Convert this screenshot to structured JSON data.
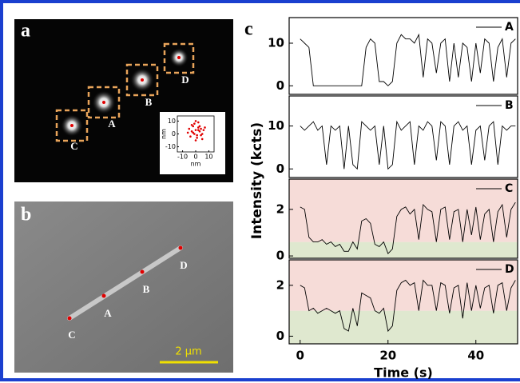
{
  "panel_a": {
    "label": "a",
    "spots": [
      "A",
      "B",
      "C",
      "D"
    ]
  },
  "panel_b": {
    "label": "b",
    "points": [
      "A",
      "B",
      "C",
      "D"
    ],
    "scale_bar": "2 μm"
  },
  "panel_c": {
    "label": "c",
    "ylabel": "Intensity (kcts)",
    "xlabel": "Time (s)"
  },
  "chart_data": [
    {
      "type": "line",
      "x": [
        0,
        1,
        2,
        3,
        4,
        5,
        6,
        7,
        8,
        9,
        10,
        11,
        12,
        13,
        14,
        15,
        16,
        17,
        18,
        19,
        20,
        21,
        22,
        23,
        24,
        25,
        26,
        27,
        28,
        29,
        30,
        31,
        32,
        33,
        34,
        35,
        36,
        37,
        38,
        39,
        40,
        41,
        42,
        43,
        44,
        45,
        46,
        47,
        48,
        49
      ],
      "series": [
        {
          "name": "A",
          "color": "#000000",
          "values": [
            11,
            10,
            9,
            0,
            0,
            0,
            0,
            0,
            0,
            0,
            0,
            0,
            0,
            0,
            0,
            9,
            11,
            10,
            1,
            1,
            0,
            1,
            10,
            12,
            11,
            11,
            10,
            12,
            2,
            11,
            10,
            3,
            10,
            11,
            1,
            10,
            2,
            10,
            9,
            1,
            10,
            3,
            11,
            10,
            1,
            9,
            11,
            2,
            10,
            11
          ]
        }
      ],
      "xlim": [
        -2.5,
        49.5
      ],
      "ylim": [
        -2,
        16
      ],
      "yticks": [
        0,
        10
      ]
    },
    {
      "type": "line",
      "x": [
        0,
        1,
        2,
        3,
        4,
        5,
        6,
        7,
        8,
        9,
        10,
        11,
        12,
        13,
        14,
        15,
        16,
        17,
        18,
        19,
        20,
        21,
        22,
        23,
        24,
        25,
        26,
        27,
        28,
        29,
        30,
        31,
        32,
        33,
        34,
        35,
        36,
        37,
        38,
        39,
        40,
        41,
        42,
        43,
        44,
        45,
        46,
        47,
        48,
        49
      ],
      "series": [
        {
          "name": "B",
          "color": "#000000",
          "values": [
            10,
            9,
            10,
            11,
            9,
            10,
            1,
            10,
            9,
            10,
            0,
            10,
            1,
            0,
            11,
            10,
            9,
            10,
            1,
            10,
            0,
            1,
            11,
            9,
            10,
            11,
            1,
            10,
            9,
            11,
            10,
            2,
            11,
            10,
            1,
            10,
            11,
            9,
            10,
            1,
            9,
            10,
            2,
            10,
            11,
            1,
            10,
            9,
            10,
            10
          ]
        }
      ],
      "xlim": [
        -2.5,
        49.5
      ],
      "ylim": [
        -2,
        17
      ],
      "yticks": [
        0,
        10
      ]
    },
    {
      "type": "line",
      "x": [
        0,
        1,
        2,
        3,
        4,
        5,
        6,
        7,
        8,
        9,
        10,
        11,
        12,
        13,
        14,
        15,
        16,
        17,
        18,
        19,
        20,
        21,
        22,
        23,
        24,
        25,
        26,
        27,
        28,
        29,
        30,
        31,
        32,
        33,
        34,
        35,
        36,
        37,
        38,
        39,
        40,
        41,
        42,
        43,
        44,
        45,
        46,
        47,
        48,
        49
      ],
      "series": [
        {
          "name": "C",
          "color": "#000000",
          "values": [
            2.1,
            2.0,
            0.8,
            0.6,
            0.6,
            0.7,
            0.5,
            0.6,
            0.4,
            0.5,
            0.2,
            0.2,
            0.6,
            0.3,
            1.5,
            1.6,
            1.4,
            0.5,
            0.4,
            0.6,
            0.1,
            0.3,
            1.7,
            2.0,
            2.1,
            1.8,
            2.0,
            0.7,
            2.2,
            2.0,
            1.9,
            0.6,
            2.0,
            2.1,
            0.7,
            1.9,
            2.0,
            0.6,
            2.0,
            0.9,
            2.1,
            0.7,
            1.8,
            2.0,
            0.6,
            1.9,
            2.2,
            0.8,
            2.0,
            2.3
          ]
        }
      ],
      "xlim": [
        -2.5,
        49.5
      ],
      "ylim": [
        -0.1,
        3.3
      ],
      "yticks": [
        0,
        2
      ],
      "bands": [
        {
          "from": -0.1,
          "to": 0.6,
          "color": "#dfe8cf"
        },
        {
          "from": 0.6,
          "to": 3.3,
          "color": "#f6dcd8"
        }
      ]
    },
    {
      "type": "line",
      "x": [
        0,
        1,
        2,
        3,
        4,
        5,
        6,
        7,
        8,
        9,
        10,
        11,
        12,
        13,
        14,
        15,
        16,
        17,
        18,
        19,
        20,
        21,
        22,
        23,
        24,
        25,
        26,
        27,
        28,
        29,
        30,
        31,
        32,
        33,
        34,
        35,
        36,
        37,
        38,
        39,
        40,
        41,
        42,
        43,
        44,
        45,
        46,
        47,
        48,
        49
      ],
      "series": [
        {
          "name": "D",
          "color": "#000000",
          "values": [
            2.0,
            1.9,
            1.0,
            1.1,
            0.9,
            1.0,
            1.1,
            1.0,
            0.9,
            1.0,
            0.3,
            0.2,
            1.1,
            0.4,
            1.7,
            1.6,
            1.5,
            1.0,
            0.9,
            1.1,
            0.2,
            0.4,
            1.8,
            2.1,
            2.2,
            2.0,
            2.1,
            1.0,
            2.2,
            2.0,
            2.0,
            1.0,
            2.1,
            2.0,
            0.9,
            1.9,
            2.0,
            0.7,
            2.1,
            1.0,
            2.0,
            1.1,
            1.9,
            2.0,
            0.9,
            2.0,
            2.1,
            1.0,
            1.9,
            2.2
          ]
        }
      ],
      "xlim": [
        -2.5,
        49.5
      ],
      "ylim": [
        -0.3,
        3.0
      ],
      "yticks": [
        0,
        2
      ],
      "xticks": [
        0,
        20,
        40
      ],
      "bands": [
        {
          "from": -0.3,
          "to": 1.0,
          "color": "#dfe8cf"
        },
        {
          "from": 1.0,
          "to": 3.0,
          "color": "#f6dcd8"
        }
      ]
    },
    {
      "type": "scatter",
      "xlabel": "nm",
      "ylabel": "nm",
      "color": "#e00000",
      "x": [
        -3,
        2,
        4,
        -1,
        0,
        5,
        -5,
        1,
        3,
        -2,
        6,
        -4,
        2,
        0,
        -6,
        4,
        1,
        -3,
        3,
        7,
        -1,
        5,
        -2,
        2,
        0
      ],
      "values": [
        2,
        5,
        -1,
        8,
        3,
        0,
        4,
        -3,
        6,
        1,
        3,
        -2,
        9,
        -5,
        1,
        4,
        -1,
        7,
        2,
        5,
        0,
        -4,
        6,
        3,
        10
      ],
      "xlim": [
        -14,
        14
      ],
      "ylim": [
        -14,
        14
      ],
      "xticks": [
        -10,
        0,
        10
      ],
      "yticks": [
        10,
        0,
        -10
      ]
    }
  ]
}
